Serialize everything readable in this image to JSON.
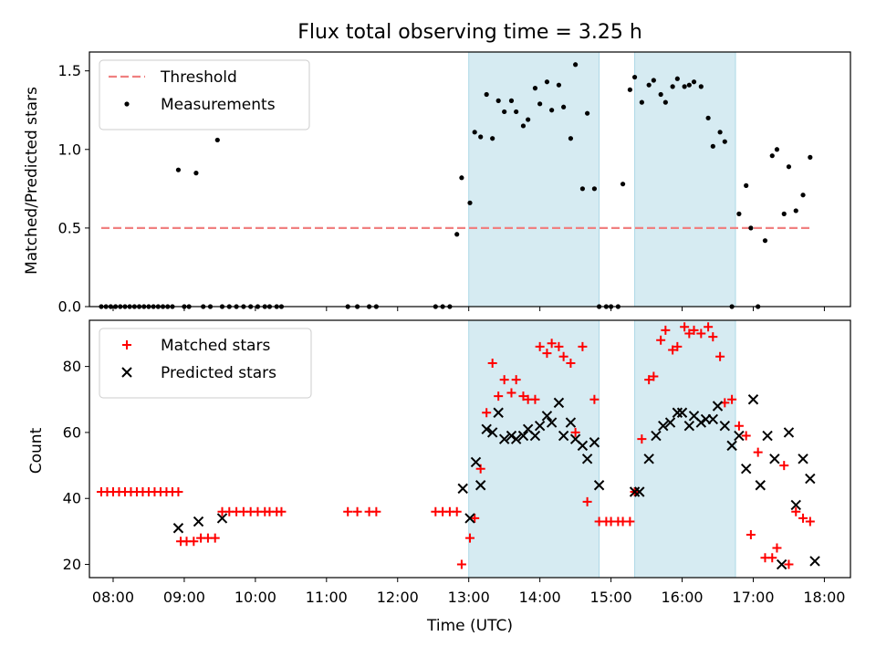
{
  "chart_data": [
    {
      "type": "scatter",
      "title": "Flux total observing time = 3.25 h",
      "xlabel": "",
      "ylabel": "Matched/Predicted stars",
      "ylim": [
        0,
        1.62
      ],
      "xlim": [
        "07:40",
        "18:22"
      ],
      "yticks": [
        "0.0",
        "0.5",
        "1.0",
        "1.5"
      ],
      "ytick_values": [
        0,
        0.5,
        1.0,
        1.5
      ],
      "legend_position": "top-left",
      "grid": false,
      "shaded_intervals": [
        [
          "13:00",
          "14:50"
        ],
        [
          "15:20",
          "16:45"
        ]
      ],
      "shade_color": "#add8e6",
      "threshold": {
        "name": "Threshold",
        "y": 0.5,
        "x_range": [
          "07:50",
          "17:50"
        ],
        "color": "#f08080",
        "style": "dashed"
      },
      "series": [
        {
          "name": "Measurements",
          "color": "#000000",
          "marker": "dot",
          "x": [
            "07:50",
            "07:54",
            "07:58",
            "08:02",
            "08:06",
            "08:10",
            "08:14",
            "08:18",
            "08:22",
            "08:26",
            "08:30",
            "08:34",
            "08:38",
            "08:42",
            "08:46",
            "08:50",
            "08:55",
            "09:00",
            "09:04",
            "09:10",
            "09:16",
            "09:22",
            "09:28",
            "09:32",
            "09:38",
            "09:44",
            "09:50",
            "09:56",
            "10:02",
            "10:08",
            "10:12",
            "10:18",
            "10:22",
            "11:18",
            "11:26",
            "11:36",
            "11:42",
            "12:32",
            "12:38",
            "12:44",
            "12:50",
            "12:54",
            "13:01",
            "13:05",
            "13:10",
            "13:15",
            "13:20",
            "13:25",
            "13:30",
            "13:36",
            "13:40",
            "13:46",
            "13:50",
            "13:56",
            "14:00",
            "14:06",
            "14:10",
            "14:16",
            "14:20",
            "14:26",
            "14:30",
            "14:36",
            "14:40",
            "14:46",
            "14:50",
            "14:56",
            "15:00",
            "15:06",
            "15:10",
            "15:16",
            "15:20",
            "15:26",
            "15:32",
            "15:36",
            "15:42",
            "15:46",
            "15:52",
            "15:56",
            "16:02",
            "16:06",
            "16:10",
            "16:16",
            "16:22",
            "16:26",
            "16:32",
            "16:36",
            "16:42",
            "16:48",
            "16:54",
            "16:58",
            "17:04",
            "17:10",
            "17:16",
            "17:20",
            "17:26",
            "17:30",
            "17:36",
            "17:42",
            "17:48"
          ],
          "y": [
            0,
            0,
            0,
            0,
            0,
            0,
            0,
            0,
            0,
            0,
            0,
            0,
            0,
            0,
            0,
            0,
            0.87,
            0,
            0,
            0.85,
            0,
            0,
            1.06,
            0,
            0,
            0,
            0,
            0,
            0,
            0,
            0,
            0,
            0,
            0,
            0,
            0,
            0,
            0,
            0,
            0,
            0.46,
            0.82,
            0.66,
            1.11,
            1.08,
            1.35,
            1.07,
            1.31,
            1.24,
            1.31,
            1.24,
            1.15,
            1.19,
            1.39,
            1.29,
            1.43,
            1.25,
            1.41,
            1.27,
            1.07,
            1.54,
            0.75,
            1.23,
            0.75,
            0,
            0,
            0,
            0,
            0.78,
            1.38,
            1.46,
            1.3,
            1.41,
            1.44,
            1.35,
            1.3,
            1.4,
            1.45,
            1.4,
            1.41,
            1.43,
            1.4,
            1.2,
            1.02,
            1.11,
            1.05,
            0,
            0.59,
            0.77,
            0.5,
            0,
            0.42,
            0.96,
            1.0,
            0.59,
            0.89,
            0.61,
            0.71,
            0.95
          ]
        }
      ]
    },
    {
      "type": "scatter",
      "title": "",
      "xlabel": "Time (UTC)",
      "ylabel": "Count",
      "ylim": [
        16,
        94
      ],
      "xlim": [
        "07:40",
        "18:22"
      ],
      "yticks": [
        "20",
        "40",
        "60",
        "80"
      ],
      "ytick_values": [
        20,
        40,
        60,
        80
      ],
      "xticks": [
        "08:00",
        "09:00",
        "10:00",
        "11:00",
        "12:00",
        "13:00",
        "14:00",
        "15:00",
        "16:00",
        "17:00",
        "18:00"
      ],
      "legend_position": "top-left",
      "grid": false,
      "shaded_intervals": [
        [
          "13:00",
          "14:50"
        ],
        [
          "15:20",
          "16:45"
        ]
      ],
      "shade_color": "#add8e6",
      "series": [
        {
          "name": "Matched stars",
          "color": "#ff0000",
          "marker": "plus",
          "x": [
            "07:50",
            "07:55",
            "08:00",
            "08:05",
            "08:10",
            "08:15",
            "08:20",
            "08:25",
            "08:30",
            "08:35",
            "08:40",
            "08:45",
            "08:50",
            "08:55",
            "08:57",
            "09:02",
            "09:08",
            "09:14",
            "09:20",
            "09:26",
            "09:32",
            "09:38",
            "09:44",
            "09:50",
            "09:56",
            "10:02",
            "10:08",
            "10:12",
            "10:18",
            "10:22",
            "11:18",
            "11:26",
            "11:36",
            "11:42",
            "12:32",
            "12:38",
            "12:44",
            "12:50",
            "12:54",
            "13:01",
            "13:05",
            "13:10",
            "13:15",
            "13:20",
            "13:25",
            "13:30",
            "13:36",
            "13:40",
            "13:46",
            "13:50",
            "13:56",
            "14:00",
            "14:06",
            "14:10",
            "14:16",
            "14:20",
            "14:26",
            "14:30",
            "14:36",
            "14:40",
            "14:46",
            "14:50",
            "14:56",
            "15:00",
            "15:06",
            "15:10",
            "15:16",
            "15:20",
            "15:26",
            "15:32",
            "15:36",
            "15:42",
            "15:46",
            "15:52",
            "15:56",
            "16:02",
            "16:06",
            "16:10",
            "16:16",
            "16:22",
            "16:26",
            "16:32",
            "16:36",
            "16:42",
            "16:48",
            "16:54",
            "16:58",
            "17:04",
            "17:10",
            "17:16",
            "17:20",
            "17:26",
            "17:30",
            "17:36",
            "17:42",
            "17:48"
          ],
          "y": [
            42,
            42,
            42,
            42,
            42,
            42,
            42,
            42,
            42,
            42,
            42,
            42,
            42,
            42,
            27,
            27,
            27,
            28,
            28,
            28,
            36,
            36,
            36,
            36,
            36,
            36,
            36,
            36,
            36,
            36,
            36,
            36,
            36,
            36,
            36,
            36,
            36,
            36,
            20,
            28,
            34,
            49,
            66,
            81,
            71,
            76,
            72,
            76,
            71,
            70,
            70,
            86,
            84,
            87,
            86,
            83,
            81,
            60,
            86,
            39,
            70,
            33,
            33,
            33,
            33,
            33,
            33,
            42,
            58,
            76,
            77,
            88,
            91,
            85,
            86,
            92,
            90,
            91,
            90,
            92,
            89,
            83,
            69,
            70,
            62,
            59,
            29,
            54,
            22,
            22,
            25,
            50,
            20,
            36,
            34,
            33
          ]
        },
        {
          "name": "Predicted stars",
          "color": "#000000",
          "marker": "x",
          "x": [
            "08:55",
            "09:12",
            "09:32",
            "12:55",
            "13:01",
            "13:06",
            "13:10",
            "13:15",
            "13:20",
            "13:25",
            "13:30",
            "13:36",
            "13:40",
            "13:46",
            "13:50",
            "13:56",
            "14:00",
            "14:06",
            "14:10",
            "14:16",
            "14:20",
            "14:26",
            "14:30",
            "14:36",
            "14:40",
            "14:46",
            "14:50",
            "15:20",
            "15:24",
            "15:32",
            "15:38",
            "15:44",
            "15:50",
            "15:56",
            "16:00",
            "16:06",
            "16:10",
            "16:16",
            "16:20",
            "16:26",
            "16:30",
            "16:36",
            "16:42",
            "16:48",
            "16:54",
            "17:00",
            "17:06",
            "17:12",
            "17:18",
            "17:24",
            "17:30",
            "17:36",
            "17:42",
            "17:48",
            "17:52"
          ],
          "y": [
            31,
            33,
            34,
            43,
            34,
            51,
            44,
            61,
            60,
            66,
            58,
            59,
            58,
            59,
            61,
            59,
            62,
            65,
            63,
            69,
            59,
            63,
            58,
            56,
            52,
            57,
            44,
            42,
            42,
            52,
            59,
            62,
            63,
            66,
            66,
            62,
            65,
            63,
            64,
            64,
            68,
            62,
            56,
            59,
            49,
            70,
            44,
            59,
            52,
            20,
            60,
            38,
            52,
            46,
            21
          ]
        }
      ]
    }
  ]
}
